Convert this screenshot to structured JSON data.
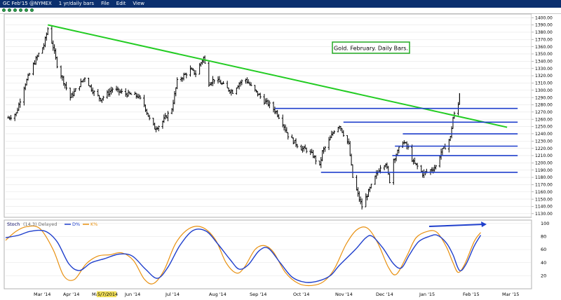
{
  "window": {
    "title_label": "GC Feb'15 @NYMEX",
    "interval_label": "1 yr/daily bars",
    "menu": [
      "File",
      "Edit",
      "View"
    ]
  },
  "colors": {
    "price_bars": "#000000",
    "trendline": "#22cc22",
    "support_lines": "#1f3fcc",
    "stoch_d": "#1f3fcc",
    "stoch_k": "#e8900f",
    "annotation_border": "#22aa22"
  },
  "annotation": {
    "text": "Gold. February. Daily Bars."
  },
  "stoch_panel": {
    "label": "Stoch",
    "params": "(14,3) Delayed",
    "d_label": "D%",
    "k_label": "K%"
  },
  "x_axis": {
    "labels": [
      "Mar '14",
      "Apr '14",
      "Ma",
      "5/7/2014",
      "Jun '14",
      "Jul '14",
      "Aug '14",
      "Sep '14",
      "Oct '14",
      "Nov '14",
      "Dec '14",
      "Jan '15",
      "Feb '15",
      "Mar '15"
    ]
  },
  "chart_data": [
    {
      "type": "ohlc",
      "title": "",
      "x_range": [
        "2014-02-10",
        "2015-03-15"
      ],
      "ylim": [
        1125,
        1405
      ],
      "y_ticks": [
        1130,
        1140,
        1150,
        1160,
        1170,
        1180,
        1190,
        1200,
        1210,
        1220,
        1230,
        1240,
        1250,
        1260,
        1270,
        1280,
        1290,
        1300,
        1310,
        1320,
        1330,
        1340,
        1350,
        1360,
        1370,
        1380,
        1390,
        1400
      ],
      "y_tick_labels": [
        "1130.00",
        "1140.00",
        "1150.00",
        "1160.00",
        "1170.00",
        "1180.00",
        "1190.00",
        "1200.00",
        "1210.00",
        "1220.00",
        "1230.00",
        "1240.00",
        "1250.00",
        "1260.00",
        "1270.00",
        "1280.00",
        "1290.00",
        "1300.00",
        "1310.00",
        "1320.00",
        "1330.00",
        "1340.00",
        "1350.00",
        "1360.00",
        "1370.00",
        "1380.00",
        "1390.00",
        "1400.00"
      ],
      "close_path": [
        [
          "2014-02-12",
          1262
        ],
        [
          "2014-02-18",
          1268
        ],
        [
          "2014-02-24",
          1305
        ],
        [
          "2014-03-03",
          1335
        ],
        [
          "2014-03-07",
          1350
        ],
        [
          "2014-03-11",
          1362
        ],
        [
          "2014-03-14",
          1385
        ],
        [
          "2014-03-18",
          1360
        ],
        [
          "2014-03-21",
          1335
        ],
        [
          "2014-03-26",
          1312
        ],
        [
          "2014-03-31",
          1290
        ],
        [
          "2014-04-04",
          1300
        ],
        [
          "2014-04-08",
          1310
        ],
        [
          "2014-04-11",
          1318
        ],
        [
          "2014-04-15",
          1305
        ],
        [
          "2014-04-18",
          1297
        ],
        [
          "2014-04-23",
          1288
        ],
        [
          "2014-04-28",
          1295
        ],
        [
          "2014-05-02",
          1302
        ],
        [
          "2014-05-07",
          1298
        ],
        [
          "2014-05-12",
          1295
        ],
        [
          "2014-05-16",
          1294
        ],
        [
          "2014-05-21",
          1292
        ],
        [
          "2014-05-26",
          1280
        ],
        [
          "2014-05-30",
          1260
        ],
        [
          "2014-06-03",
          1248
        ],
        [
          "2014-06-07",
          1252
        ],
        [
          "2014-06-11",
          1262
        ],
        [
          "2014-06-16",
          1275
        ],
        [
          "2014-06-20",
          1312
        ],
        [
          "2014-06-25",
          1320
        ],
        [
          "2014-06-30",
          1328
        ],
        [
          "2014-07-04",
          1323
        ],
        [
          "2014-07-08",
          1338
        ],
        [
          "2014-07-10",
          1345
        ],
        [
          "2014-07-14",
          1310
        ],
        [
          "2014-07-18",
          1315
        ],
        [
          "2014-07-23",
          1310
        ],
        [
          "2014-07-28",
          1302
        ],
        [
          "2014-08-01",
          1298
        ],
        [
          "2014-08-06",
          1310
        ],
        [
          "2014-08-11",
          1315
        ],
        [
          "2014-08-15",
          1305
        ],
        [
          "2014-08-20",
          1295
        ],
        [
          "2014-08-25",
          1285
        ],
        [
          "2014-08-29",
          1280
        ],
        [
          "2014-09-03",
          1270
        ],
        [
          "2014-09-08",
          1255
        ],
        [
          "2014-09-12",
          1238
        ],
        [
          "2014-09-17",
          1228
        ],
        [
          "2014-09-22",
          1220
        ],
        [
          "2014-09-26",
          1218
        ],
        [
          "2014-10-01",
          1210
        ],
        [
          "2014-10-06",
          1195
        ],
        [
          "2014-10-08",
          1215
        ],
        [
          "2014-10-13",
          1230
        ],
        [
          "2014-10-17",
          1245
        ],
        [
          "2014-10-21",
          1252
        ],
        [
          "2014-10-24",
          1240
        ],
        [
          "2014-10-28",
          1225
        ],
        [
          "2014-10-31",
          1180
        ],
        [
          "2014-11-05",
          1150
        ],
        [
          "2014-11-07",
          1140
        ],
        [
          "2014-11-12",
          1160
        ],
        [
          "2014-11-17",
          1180
        ],
        [
          "2014-11-21",
          1195
        ],
        [
          "2014-11-25",
          1200
        ],
        [
          "2014-11-28",
          1175
        ],
        [
          "2014-12-01",
          1205
        ],
        [
          "2014-12-04",
          1215
        ],
        [
          "2014-12-08",
          1230
        ],
        [
          "2014-12-12",
          1220
        ],
        [
          "2014-12-16",
          1200
        ],
        [
          "2014-12-19",
          1195
        ],
        [
          "2014-12-23",
          1185
        ],
        [
          "2014-12-29",
          1190
        ],
        [
          "2015-01-02",
          1195
        ],
        [
          "2015-01-06",
          1215
        ],
        [
          "2015-01-09",
          1222
        ],
        [
          "2015-01-13",
          1235
        ],
        [
          "2015-01-15",
          1262
        ],
        [
          "2015-01-19",
          1280
        ],
        [
          "2015-01-20",
          1292
        ]
      ]
    },
    {
      "type": "line",
      "title": "",
      "ylim": [
        0,
        105
      ],
      "y_ticks": [
        20,
        40,
        60,
        80,
        100
      ],
      "y_tick_labels": [
        "20",
        "40",
        "60",
        "80",
        "100"
      ],
      "series": [
        {
          "name": "D%",
          "points": [
            [
              "2014-02-10",
              78
            ],
            [
              "2014-02-20",
              82
            ],
            [
              "2014-03-01",
              88
            ],
            [
              "2014-03-12",
              88
            ],
            [
              "2014-03-21",
              72
            ],
            [
              "2014-03-30",
              38
            ],
            [
              "2014-04-07",
              28
            ],
            [
              "2014-04-16",
              40
            ],
            [
              "2014-04-26",
              46
            ],
            [
              "2014-05-07",
              53
            ],
            [
              "2014-05-17",
              50
            ],
            [
              "2014-05-27",
              30
            ],
            [
              "2014-06-05",
              16
            ],
            [
              "2014-06-13",
              33
            ],
            [
              "2014-06-22",
              66
            ],
            [
              "2014-07-02",
              89
            ],
            [
              "2014-07-12",
              88
            ],
            [
              "2014-07-21",
              68
            ],
            [
              "2014-07-30",
              45
            ],
            [
              "2014-08-06",
              30
            ],
            [
              "2014-08-13",
              37
            ],
            [
              "2014-08-21",
              58
            ],
            [
              "2014-08-28",
              62
            ],
            [
              "2014-09-06",
              40
            ],
            [
              "2014-09-15",
              18
            ],
            [
              "2014-09-25",
              10
            ],
            [
              "2014-10-05",
              12
            ],
            [
              "2014-10-14",
              20
            ],
            [
              "2014-10-21",
              36
            ],
            [
              "2014-11-02",
              60
            ],
            [
              "2014-11-10",
              78
            ],
            [
              "2014-11-15",
              80
            ],
            [
              "2014-11-23",
              62
            ],
            [
              "2014-12-01",
              38
            ],
            [
              "2014-12-07",
              32
            ],
            [
              "2014-12-13",
              52
            ],
            [
              "2014-12-20",
              72
            ],
            [
              "2014-12-28",
              80
            ],
            [
              "2015-01-03",
              82
            ],
            [
              "2015-01-10",
              70
            ],
            [
              "2015-01-15",
              52
            ],
            [
              "2015-01-20",
              28
            ],
            [
              "2015-01-25",
              38
            ],
            [
              "2015-01-31",
              65
            ],
            [
              "2015-02-05",
              82
            ]
          ]
        },
        {
          "name": "K%",
          "points": [
            [
              "2014-02-10",
              74
            ],
            [
              "2014-02-18",
              88
            ],
            [
              "2014-02-26",
              95
            ],
            [
              "2014-03-08",
              92
            ],
            [
              "2014-03-18",
              60
            ],
            [
              "2014-03-26",
              20
            ],
            [
              "2014-04-03",
              14
            ],
            [
              "2014-04-12",
              38
            ],
            [
              "2014-04-21",
              50
            ],
            [
              "2014-04-30",
              52
            ],
            [
              "2014-05-09",
              55
            ],
            [
              "2014-05-18",
              43
            ],
            [
              "2014-05-26",
              15
            ],
            [
              "2014-06-02",
              8
            ],
            [
              "2014-06-10",
              28
            ],
            [
              "2014-06-19",
              70
            ],
            [
              "2014-06-29",
              92
            ],
            [
              "2014-07-09",
              94
            ],
            [
              "2014-07-19",
              75
            ],
            [
              "2014-07-27",
              40
            ],
            [
              "2014-08-04",
              24
            ],
            [
              "2014-08-10",
              33
            ],
            [
              "2014-08-18",
              60
            ],
            [
              "2014-08-25",
              66
            ],
            [
              "2014-09-01",
              56
            ],
            [
              "2014-09-10",
              25
            ],
            [
              "2014-09-20",
              8
            ],
            [
              "2014-09-30",
              5
            ],
            [
              "2014-10-09",
              11
            ],
            [
              "2014-10-17",
              30
            ],
            [
              "2014-10-26",
              68
            ],
            [
              "2014-11-03",
              90
            ],
            [
              "2014-11-11",
              93
            ],
            [
              "2014-11-19",
              70
            ],
            [
              "2014-11-27",
              33
            ],
            [
              "2014-12-03",
              22
            ],
            [
              "2014-12-11",
              50
            ],
            [
              "2014-12-18",
              78
            ],
            [
              "2014-12-27",
              88
            ],
            [
              "2015-01-03",
              86
            ],
            [
              "2015-01-10",
              64
            ],
            [
              "2015-01-15",
              40
            ],
            [
              "2015-01-19",
              25
            ],
            [
              "2015-01-24",
              38
            ],
            [
              "2015-01-31",
              72
            ],
            [
              "2015-02-05",
              86
            ]
          ]
        }
      ]
    }
  ]
}
